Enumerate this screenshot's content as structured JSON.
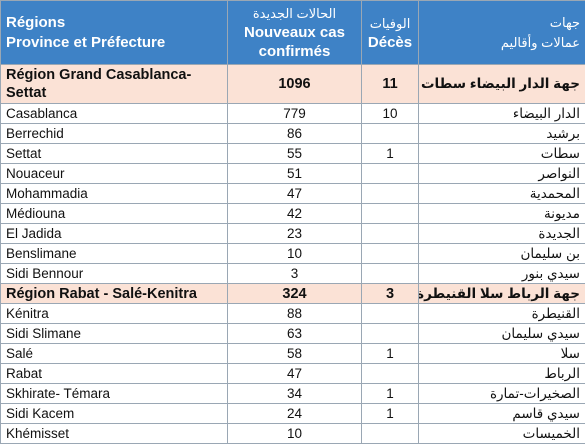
{
  "header": {
    "regions_fr": [
      "Régions",
      "Province et Préfecture"
    ],
    "cases_ar": "الحالات الجديدة",
    "cases_fr": [
      "Nouveaux cas",
      "confirmés"
    ],
    "deaths_ar": "الوفيات",
    "deaths_fr": "Décès",
    "regions_ar": [
      "جهات",
      "عمالات وأقاليم"
    ]
  },
  "rows": [
    {
      "type": "region",
      "name": "Région Grand Casablanca-Settat",
      "cases": "1096",
      "deaths": "11",
      "name_ar": "جهة الدار البيضاء سطات"
    },
    {
      "type": "province",
      "name": "Casablanca",
      "cases": "779",
      "deaths": "10",
      "name_ar": "الدار البيضاء"
    },
    {
      "type": "province",
      "name": "Berrechid",
      "cases": "86",
      "deaths": "",
      "name_ar": "برشيد"
    },
    {
      "type": "province",
      "name": "Settat",
      "cases": "55",
      "deaths": "1",
      "name_ar": "سطات"
    },
    {
      "type": "province",
      "name": "Nouaceur",
      "cases": "51",
      "deaths": "",
      "name_ar": "النواصر"
    },
    {
      "type": "province",
      "name": "Mohammadia",
      "cases": "47",
      "deaths": "",
      "name_ar": "المحمدية"
    },
    {
      "type": "province",
      "name": "Médiouna",
      "cases": "42",
      "deaths": "",
      "name_ar": "مديونة"
    },
    {
      "type": "province",
      "name": "El Jadida",
      "cases": "23",
      "deaths": "",
      "name_ar": "الجديدة"
    },
    {
      "type": "province",
      "name": "Benslimane",
      "cases": "10",
      "deaths": "",
      "name_ar": "بن سليمان"
    },
    {
      "type": "province",
      "name": "Sidi Bennour",
      "cases": "3",
      "deaths": "",
      "name_ar": "سيدي بنور"
    },
    {
      "type": "region",
      "name": "Région Rabat - Salé-Kenitra",
      "cases": "324",
      "deaths": "3",
      "name_ar": "جهة الرباط سلا القنيطرة"
    },
    {
      "type": "province",
      "name": "Kénitra",
      "cases": "88",
      "deaths": "",
      "name_ar": "القنيطرة"
    },
    {
      "type": "province",
      "name": "Sidi Slimane",
      "cases": "63",
      "deaths": "",
      "name_ar": "سيدي سليمان"
    },
    {
      "type": "province",
      "name": "Salé",
      "cases": "58",
      "deaths": "1",
      "name_ar": "سلا"
    },
    {
      "type": "province",
      "name": "Rabat",
      "cases": "47",
      "deaths": "",
      "name_ar": "الرباط"
    },
    {
      "type": "province",
      "name": "Skhirate- Témara",
      "cases": "34",
      "deaths": "1",
      "name_ar": "الصخيرات-تمارة"
    },
    {
      "type": "province",
      "name": "Sidi Kacem",
      "cases": "24",
      "deaths": "1",
      "name_ar": "سيدي قاسم"
    },
    {
      "type": "province",
      "name": "Khémisset",
      "cases": "10",
      "deaths": "",
      "name_ar": "الخميسات"
    }
  ]
}
